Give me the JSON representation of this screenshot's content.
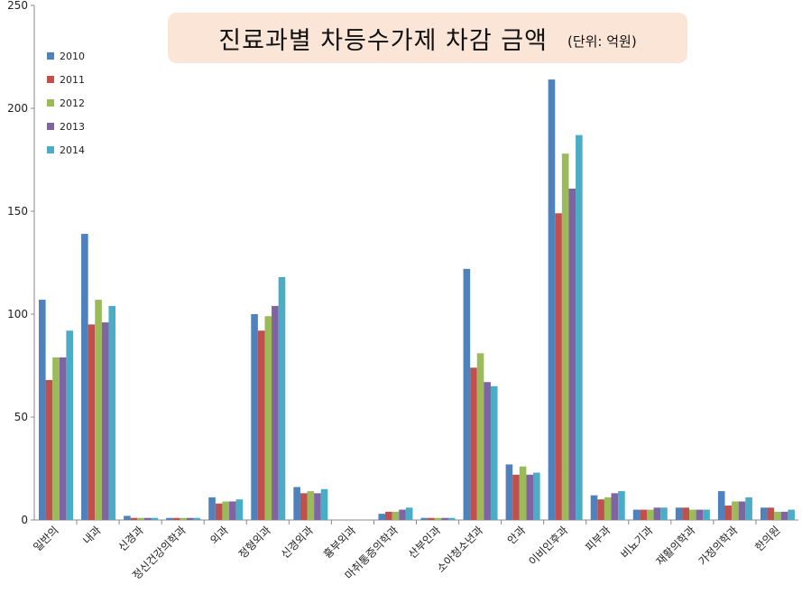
{
  "chart_data": {
    "type": "bar",
    "title": "진료과별 차등수가제 차감 금액",
    "subtitle": "(단위: 억원)",
    "categories": [
      "일반의",
      "내과",
      "신경과",
      "정신건강의학과",
      "외과",
      "정형외과",
      "신경외과",
      "흉부외과",
      "마취통증의학과",
      "산부인과",
      "소아청소년과",
      "안과",
      "이비인후과",
      "피부과",
      "비뇨기과",
      "재활의학과",
      "가정의학과",
      "한의원"
    ],
    "series": [
      {
        "name": "2010",
        "color": "#4f81bd",
        "values": [
          107,
          139,
          2,
          1,
          11,
          100,
          16,
          0,
          3,
          1,
          122,
          27,
          214,
          12,
          5,
          6,
          14,
          6
        ]
      },
      {
        "name": "2011",
        "color": "#c0504d",
        "values": [
          68,
          95,
          1,
          1,
          8,
          92,
          13,
          0,
          4,
          1,
          74,
          22,
          149,
          10,
          5,
          6,
          7,
          6
        ]
      },
      {
        "name": "2012",
        "color": "#9bbb59",
        "values": [
          79,
          107,
          1,
          1,
          9,
          99,
          14,
          0,
          4,
          1,
          81,
          26,
          178,
          11,
          5,
          5,
          9,
          4
        ]
      },
      {
        "name": "2013",
        "color": "#8064a2",
        "values": [
          79,
          96,
          1,
          1,
          9,
          104,
          13,
          0,
          5,
          1,
          67,
          22,
          161,
          13,
          6,
          5,
          9,
          4
        ]
      },
      {
        "name": "2014",
        "color": "#4bacc6",
        "values": [
          92,
          104,
          1,
          1,
          10,
          118,
          15,
          0,
          6,
          1,
          65,
          23,
          187,
          14,
          6,
          5,
          11,
          5
        ]
      }
    ],
    "yticks": [
      "0",
      "50",
      "100",
      "150",
      "200",
      "250"
    ],
    "ylim": [
      0,
      250
    ],
    "grid": false,
    "legend": "top-left"
  }
}
